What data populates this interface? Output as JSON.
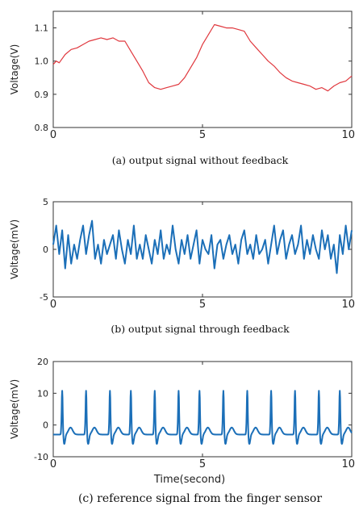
{
  "chart_data": [
    {
      "type": "line",
      "caption_prefix": "(a)",
      "caption": "output signal without feedback",
      "ylabel": "Voltage(V)",
      "xlabel": "",
      "xlim": [
        0,
        10
      ],
      "ylim": [
        0.8,
        1.15
      ],
      "xticks": [
        "0",
        "5",
        "10"
      ],
      "yticks": [
        "0.8",
        "0.9",
        "1.0",
        "1.1"
      ],
      "ytick_values": [
        0.8,
        0.9,
        1.0,
        1.1
      ],
      "color": "#e0383e",
      "series": [
        {
          "x": [
            0,
            0.1,
            0.2,
            0.4,
            0.6,
            0.8,
            1.0,
            1.2,
            1.4,
            1.6,
            1.8,
            2.0,
            2.2,
            2.4,
            2.6,
            2.8,
            3.0,
            3.2,
            3.4,
            3.6,
            3.8,
            4.0,
            4.2,
            4.4,
            4.6,
            4.8,
            5.0,
            5.2,
            5.4,
            5.6,
            5.8,
            6.0,
            6.2,
            6.4,
            6.6,
            6.8,
            7.0,
            7.2,
            7.4,
            7.6,
            7.8,
            8.0,
            8.2,
            8.4,
            8.6,
            8.8,
            9.0,
            9.2,
            9.4,
            9.6,
            9.8,
            10.0
          ],
          "y": [
            0.99,
            1.0,
            0.995,
            1.02,
            1.035,
            1.04,
            1.05,
            1.06,
            1.065,
            1.07,
            1.065,
            1.07,
            1.06,
            1.06,
            1.03,
            1.0,
            0.97,
            0.935,
            0.92,
            0.915,
            0.92,
            0.925,
            0.93,
            0.95,
            0.98,
            1.01,
            1.05,
            1.08,
            1.11,
            1.105,
            1.1,
            1.1,
            1.095,
            1.09,
            1.06,
            1.04,
            1.02,
            1.0,
            0.985,
            0.965,
            0.95,
            0.94,
            0.935,
            0.93,
            0.925,
            0.915,
            0.92,
            0.91,
            0.925,
            0.935,
            0.94,
            0.955
          ]
        }
      ]
    },
    {
      "type": "line",
      "caption_prefix": "(b)",
      "caption": "output signal through feedback",
      "ylabel": "Voltage(mV)",
      "xlabel": "",
      "xlim": [
        0,
        10
      ],
      "ylim": [
        -5,
        5
      ],
      "xticks": [
        "0",
        "5",
        "10"
      ],
      "yticks": [
        "-5",
        "0",
        "5"
      ],
      "ytick_values": [
        -5,
        0,
        5
      ],
      "color": "#1b6fb8",
      "series": [
        {
          "x": [
            0,
            0.1,
            0.2,
            0.3,
            0.4,
            0.5,
            0.6,
            0.7,
            0.8,
            0.9,
            1.0,
            1.1,
            1.2,
            1.3,
            1.4,
            1.5,
            1.6,
            1.7,
            1.8,
            1.9,
            2.0,
            2.1,
            2.2,
            2.3,
            2.4,
            2.5,
            2.6,
            2.7,
            2.8,
            2.9,
            3.0,
            3.1,
            3.2,
            3.3,
            3.4,
            3.5,
            3.6,
            3.7,
            3.8,
            3.9,
            4.0,
            4.1,
            4.2,
            4.3,
            4.4,
            4.5,
            4.6,
            4.7,
            4.8,
            4.9,
            5.0,
            5.1,
            5.2,
            5.3,
            5.4,
            5.5,
            5.6,
            5.7,
            5.8,
            5.9,
            6.0,
            6.1,
            6.2,
            6.3,
            6.4,
            6.5,
            6.6,
            6.7,
            6.8,
            6.9,
            7.0,
            7.1,
            7.2,
            7.3,
            7.4,
            7.5,
            7.6,
            7.7,
            7.8,
            7.9,
            8.0,
            8.1,
            8.2,
            8.3,
            8.4,
            8.5,
            8.6,
            8.7,
            8.8,
            8.9,
            9.0,
            9.1,
            9.2,
            9.3,
            9.4,
            9.5,
            9.6,
            9.7,
            9.8,
            9.9,
            10.0
          ],
          "y": [
            0.5,
            2.5,
            -0.5,
            2.0,
            -2.0,
            1.5,
            -1.5,
            0.5,
            -1.0,
            1.0,
            2.5,
            -0.5,
            1.5,
            3.0,
            -1.0,
            0.5,
            -1.5,
            1.0,
            -0.5,
            0.5,
            1.5,
            -1.0,
            2.0,
            0.0,
            -1.5,
            1.0,
            -0.5,
            2.5,
            -1.0,
            0.5,
            -1.0,
            1.5,
            0.0,
            -1.5,
            1.0,
            -0.5,
            2.0,
            -1.0,
            0.5,
            -0.5,
            2.5,
            0.0,
            -1.5,
            1.0,
            -0.5,
            1.5,
            -1.0,
            0.5,
            2.0,
            -1.5,
            1.0,
            0.0,
            -0.5,
            1.5,
            -2.0,
            0.5,
            1.0,
            -1.0,
            0.5,
            1.5,
            -0.5,
            0.5,
            -1.5,
            1.0,
            2.0,
            -0.5,
            0.5,
            -1.0,
            1.5,
            -0.5,
            0.0,
            1.0,
            -1.5,
            0.5,
            2.5,
            -0.5,
            1.0,
            2.0,
            -1.0,
            0.5,
            1.5,
            -0.5,
            0.5,
            2.5,
            -1.0,
            1.0,
            -0.5,
            1.5,
            0.0,
            -1.0,
            2.0,
            0.0,
            1.5,
            -1.0,
            0.5,
            -2.5,
            1.5,
            -0.5,
            2.5,
            0.0,
            2.0
          ]
        }
      ]
    },
    {
      "type": "line",
      "caption_prefix": "(c)",
      "caption": "reference signal from the finger sensor",
      "ylabel": "Voltage(mV)",
      "xlabel": "Time(second)",
      "xlim": [
        0,
        10
      ],
      "ylim": [
        -10,
        20
      ],
      "xticks": [
        "0",
        "5",
        "10"
      ],
      "yticks": [
        "-10",
        "0",
        "10",
        "20"
      ],
      "ytick_values": [
        -10,
        0,
        10,
        20
      ],
      "color": "#1b6fb8",
      "beat_times": [
        0.3,
        1.1,
        1.9,
        2.6,
        3.4,
        4.2,
        4.9,
        5.7,
        6.5,
        7.3,
        8.1,
        8.9,
        9.6
      ],
      "beat_peak": 8.0,
      "baseline": -3.0
    }
  ]
}
